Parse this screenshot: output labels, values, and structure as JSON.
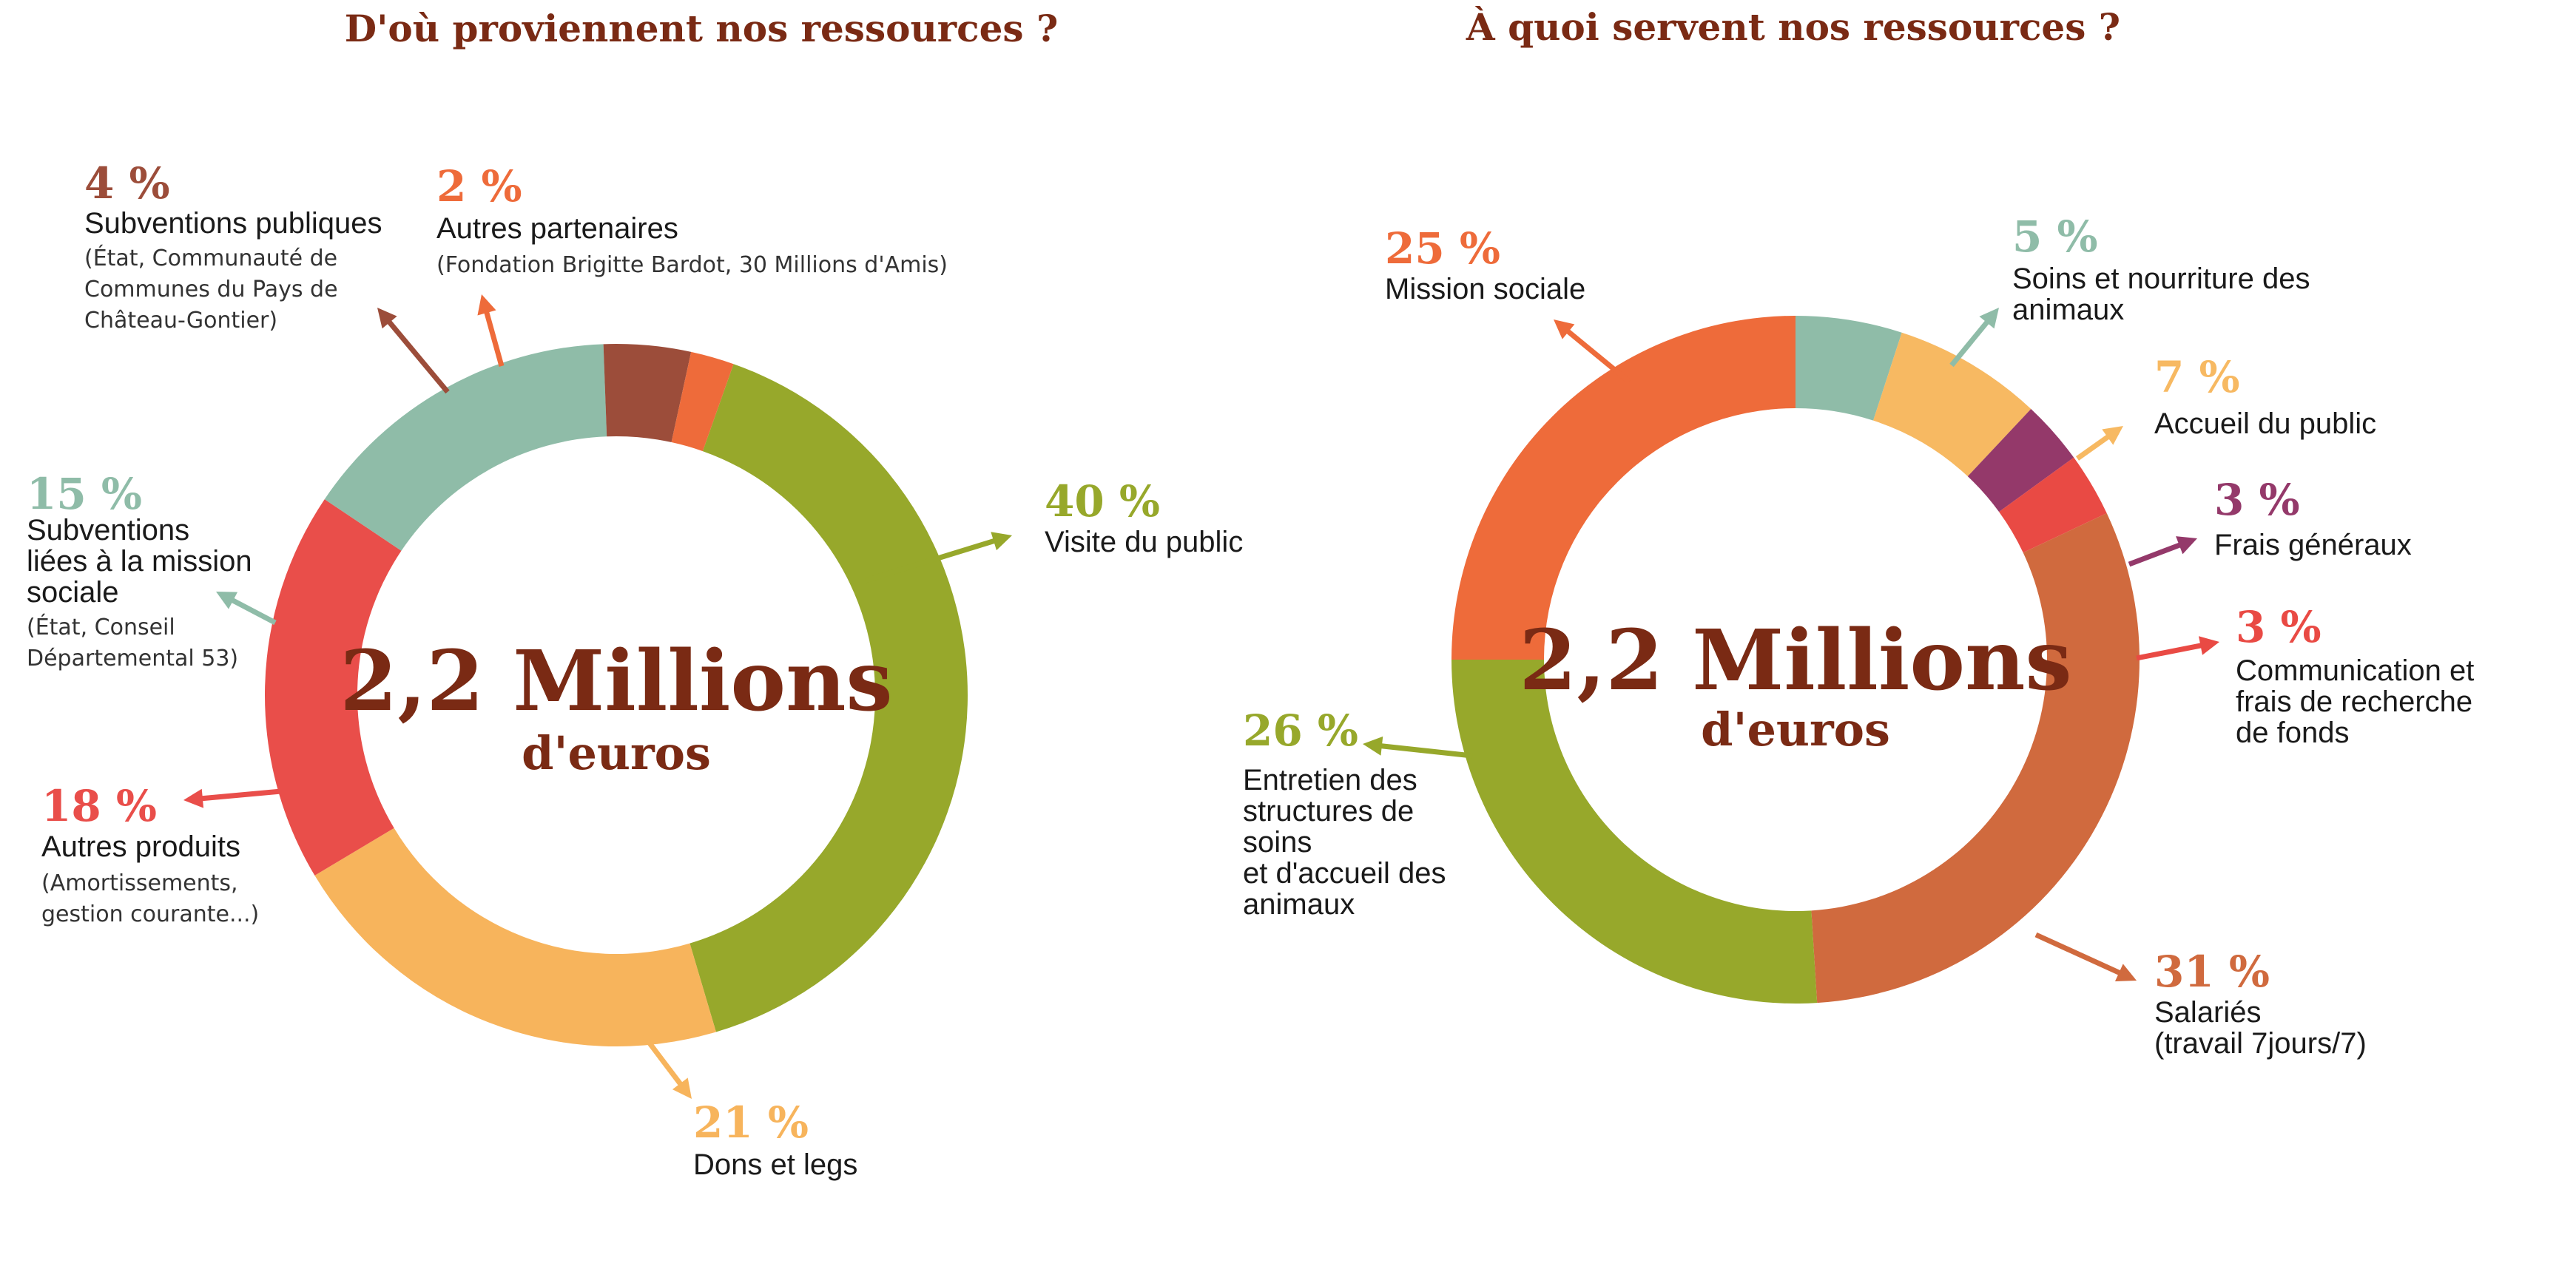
{
  "chart_data": [
    {
      "type": "pie",
      "title": "D'où proviennent nos ressources ?",
      "center_value": "2,2 Millions",
      "center_unit": "d'euros",
      "slices": [
        {
          "pct": "40 %",
          "value": 40,
          "label": "Visite du public",
          "sub": [],
          "color": "#97a82b"
        },
        {
          "pct": "21 %",
          "value": 21,
          "label": "Dons et legs",
          "sub": [],
          "color": "#f7b45c"
        },
        {
          "pct": "18 %",
          "value": 18,
          "label": "Autres produits",
          "sub": [
            "(Amortissements,",
            "gestion courante...)"
          ],
          "color": "#e94e4a"
        },
        {
          "pct": "15 %",
          "value": 15,
          "label": "Subventions liées à la mission sociale",
          "sub": [
            "(État, Conseil",
            "Départemental 53)"
          ],
          "color": "#8fbca8"
        },
        {
          "pct": "4 %",
          "value": 4,
          "label": "Subventions publiques",
          "sub": [
            "(État, Communauté de",
            "Communes du Pays de",
            "Château-Gontier)"
          ],
          "color": "#9c4d3a"
        },
        {
          "pct": "2 %",
          "value": 2,
          "label": "Autres partenaires",
          "sub": [
            "(Fondation Brigitte Bardot, 30 Millions d'Amis)"
          ],
          "color": "#ee6b3a"
        }
      ]
    },
    {
      "type": "pie",
      "title": "À quoi servent nos ressources ?",
      "center_value": "2,2 Millions",
      "center_unit": "d'euros",
      "slices": [
        {
          "pct": "5 %",
          "value": 5,
          "label": "Soins et nourriture des animaux",
          "sub": [],
          "color": "#8fbca8"
        },
        {
          "pct": "7 %",
          "value": 7,
          "label": "Accueil du public",
          "sub": [],
          "color": "#f7b962"
        },
        {
          "pct": "3 %",
          "value": 3,
          "label": "Frais généraux",
          "sub": [],
          "color": "#94396a"
        },
        {
          "pct": "3 %",
          "value": 3,
          "label": "Communication et frais de recherche de fonds",
          "sub": [],
          "color": "#e94a44"
        },
        {
          "pct": "31 %",
          "value": 31,
          "label": "Salariés (travail 7jours/7)",
          "sub": [],
          "color": "#d06a3e"
        },
        {
          "pct": "26 %",
          "value": 26,
          "label": "Entretien des structures de soins et d'accueil des animaux",
          "sub": [],
          "color": "#97a82b"
        },
        {
          "pct": "25 %",
          "value": 25,
          "label": "Mission sociale",
          "sub": [],
          "color": "#ee6b3a"
        }
      ]
    }
  ]
}
